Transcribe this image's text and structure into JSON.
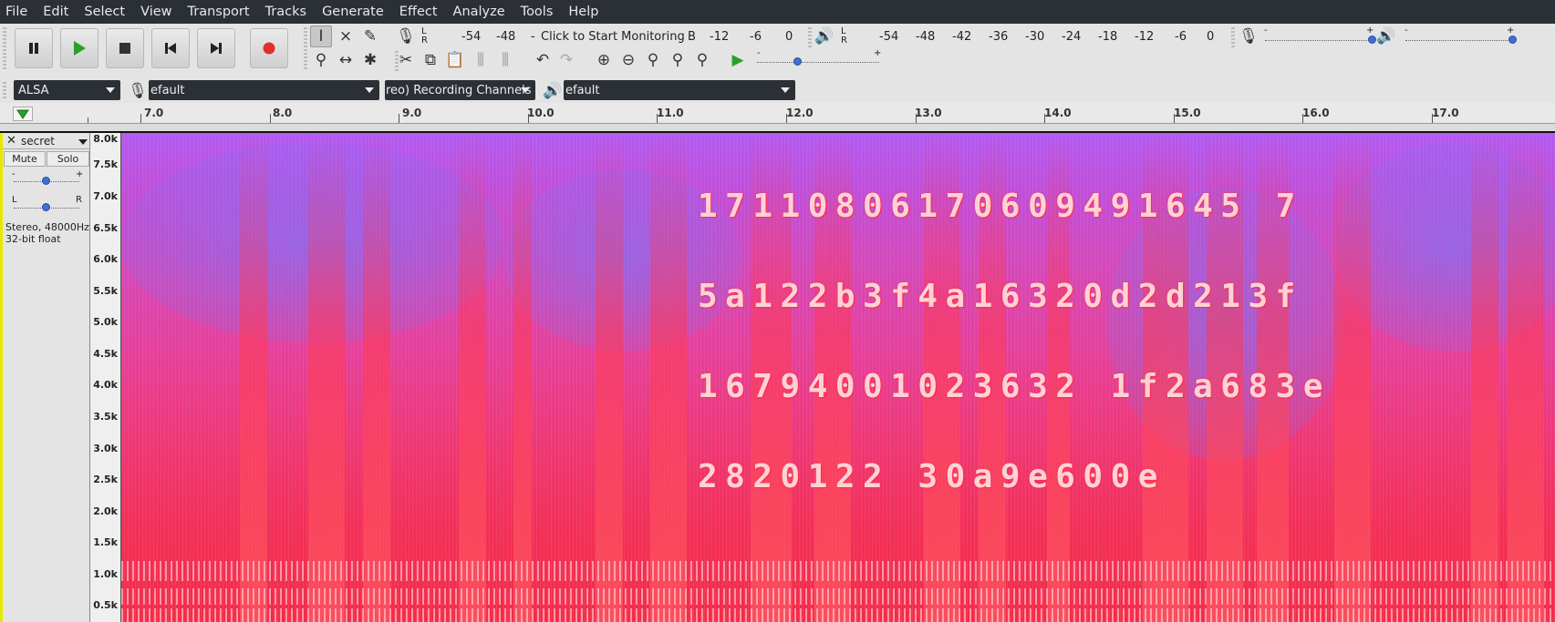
{
  "menu": [
    "File",
    "Edit",
    "Select",
    "View",
    "Transport",
    "Tracks",
    "Generate",
    "Effect",
    "Analyze",
    "Tools",
    "Help"
  ],
  "record_meter": {
    "lr": [
      "L",
      "R"
    ],
    "ticks": [
      "-54",
      "-48",
      "-",
      "B",
      "-12",
      "-6",
      "0"
    ],
    "prompt": "Click to Start Monitoring"
  },
  "playback_meter": {
    "lr": [
      "L",
      "R"
    ],
    "ticks": [
      "-54",
      "-48",
      "-42",
      "-36",
      "-30",
      "-24",
      "-18",
      "-12",
      "-6",
      "0"
    ]
  },
  "slider_marks": {
    "minus": "-",
    "plus": "+"
  },
  "device": {
    "host": "ALSA",
    "recording_device": "efault",
    "channels": "reo) Recording Channels",
    "playback_device": "efault"
  },
  "timeline": [
    "7.0",
    "8.0",
    "9.0",
    "10.0",
    "11.0",
    "12.0",
    "13.0",
    "14.0",
    "15.0",
    "16.0",
    "17.0"
  ],
  "track": {
    "name": "secret",
    "mute": "Mute",
    "solo": "Solo",
    "gain_minus": "-",
    "gain_plus": "+",
    "pan_left": "L",
    "pan_right": "R",
    "info_line1": "Stereo, 48000Hz",
    "info_line2": "32-bit float"
  },
  "freq_scale": [
    "8.0k",
    "7.5k",
    "7.0k",
    "6.5k",
    "6.0k",
    "5.5k",
    "5.0k",
    "4.5k",
    "4.0k",
    "3.5k",
    "3.0k",
    "2.5k",
    "2.0k",
    "1.5k",
    "1.0k",
    "0.5k"
  ],
  "spectrogram_text": [
    "17110806170609491645 7",
    "5a122b3f4a16320d2d213f",
    "16794001023632 1f2a683e",
    "2820122 30a9e600e"
  ],
  "colors": {
    "accent_play": "#2aa02a",
    "record": "#e0302a",
    "track_border": "#e6e600"
  }
}
